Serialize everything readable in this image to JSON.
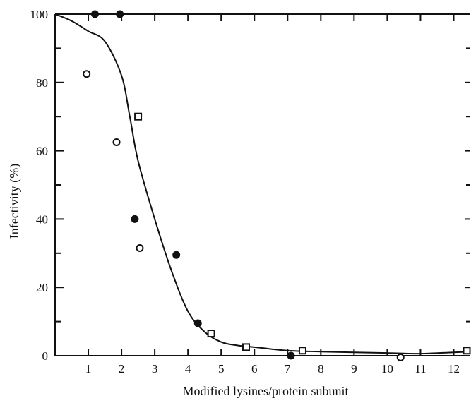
{
  "chart_data": {
    "type": "scatter",
    "title": "",
    "xlabel": "Modified lysines/protein subunit",
    "ylabel": "Infectivity (%)",
    "xlim": [
      0,
      12.5
    ],
    "ylim": [
      0,
      100
    ],
    "x_ticks": [
      1,
      2,
      3,
      4,
      5,
      6,
      7,
      8,
      9,
      10,
      11,
      12
    ],
    "y_ticks": [
      0,
      20,
      40,
      60,
      80,
      100
    ],
    "grid": false,
    "legend": "none",
    "series": [
      {
        "marker": "filled-circle",
        "x": [
          1.2,
          1.95,
          2.4,
          3.65,
          4.3,
          7.1
        ],
        "y": [
          100,
          100,
          40,
          29.5,
          9.5,
          0
        ]
      },
      {
        "marker": "open-circle",
        "x": [
          0.95,
          1.85,
          2.55,
          10.4
        ],
        "y": [
          82.5,
          62.5,
          31.5,
          -0.5
        ]
      },
      {
        "marker": "open-square",
        "x": [
          2.5,
          4.7,
          5.75,
          7.45,
          12.5
        ],
        "y": [
          70,
          6.5,
          2.5,
          1.5,
          1.5
        ]
      }
    ],
    "curve": {
      "style": "solid-line",
      "x": [
        0,
        0.5,
        1.0,
        1.5,
        2.0,
        2.25,
        2.5,
        3.0,
        3.5,
        4.0,
        4.5,
        5.0,
        5.5,
        6.0,
        7.0,
        8.0,
        9.0,
        10.0,
        11.0,
        12.0,
        12.5
      ],
      "y": [
        100,
        98,
        95,
        92,
        82,
        70,
        57,
        40,
        25,
        13,
        7,
        4,
        3,
        2.5,
        1.5,
        1.2,
        1.0,
        0.8,
        0.6,
        1.0,
        1.2
      ]
    }
  }
}
